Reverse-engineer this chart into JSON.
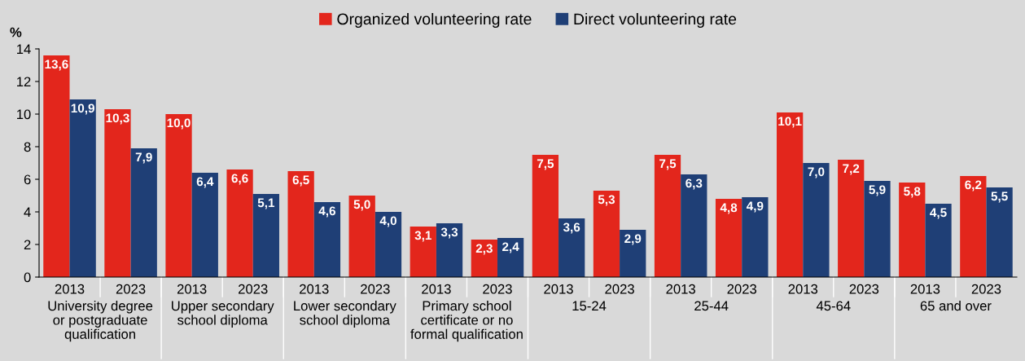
{
  "chart_data": {
    "type": "bar",
    "ylabel": "%",
    "categories": [
      "2013",
      "2023",
      "2013",
      "2023",
      "2013",
      "2023",
      "2013",
      "2023",
      "2013",
      "2023",
      "2013",
      "2023",
      "2013",
      "2023",
      "2013",
      "2023"
    ],
    "series": [
      {
        "name": "Organized volunteering rate",
        "color": "#e3261c",
        "values": [
          13.6,
          10.3,
          10.0,
          6.6,
          6.5,
          5.0,
          3.1,
          2.3,
          7.5,
          5.3,
          7.5,
          4.8,
          10.1,
          7.2,
          5.8,
          6.2
        ],
        "value_labels": [
          "13,6",
          "10,3",
          "10,0",
          "6,6",
          "6,5",
          "5,0",
          "3,1",
          "2,3",
          "7,5",
          "5,3",
          "7,5",
          "4,8",
          "10,1",
          "7,2",
          "5,8",
          "6,2"
        ]
      },
      {
        "name": "Direct volunteering rate",
        "color": "#1f3f76",
        "values": [
          10.9,
          7.9,
          6.4,
          5.1,
          4.6,
          4.0,
          3.3,
          2.4,
          3.6,
          2.9,
          6.3,
          4.9,
          7.0,
          5.9,
          4.5,
          5.5
        ],
        "value_labels": [
          "10,9",
          "7,9",
          "6,4",
          "5,1",
          "4,6",
          "4,0",
          "3,3",
          "2,4",
          "3,6",
          "2,9",
          "6,3",
          "4,9",
          "7,0",
          "5,9",
          "4,5",
          "5,5"
        ]
      }
    ],
    "annotations": [
      "University degree\nor postgraduate\nqualification",
      "Upper secondary\nschool diploma",
      "Lower secondary\nschool diploma",
      "Primary school\ncertificate or no\nformal qualification",
      "15-24",
      "25-44",
      "45-64",
      "65 and over"
    ],
    "ylim": [
      0,
      14
    ],
    "yticks": [
      0,
      2,
      4,
      6,
      8,
      10,
      12,
      14
    ],
    "grid": false,
    "legend": "top"
  }
}
